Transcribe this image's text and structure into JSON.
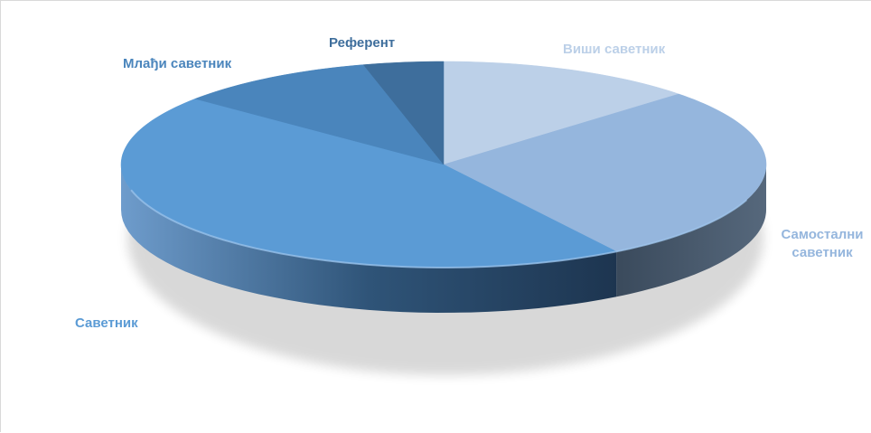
{
  "chart_data": {
    "type": "pie",
    "style": "3d",
    "categories": [
      "Виши саветник",
      "Самостални саветник",
      "Саветник",
      "Млађи саветник",
      "Референт"
    ],
    "values": [
      13,
      28,
      45,
      10,
      4
    ],
    "colors": [
      "#BCD0E8",
      "#95B6DD",
      "#5B9BD5",
      "#4A85BC",
      "#3E6E9C"
    ],
    "label_colors": [
      "#BCD0E8",
      "#95B6DD",
      "#5B9BD5",
      "#4A85BC",
      "#3E6E9C"
    ],
    "labels": {
      "visi": "Виши саветник",
      "samostalni_line1": "Самостални",
      "samostalni_line2": "саветник",
      "savetnik": "Саветник",
      "mladji": "Млађи саветник",
      "referent": "Референт"
    },
    "title": "",
    "legend": "none"
  }
}
